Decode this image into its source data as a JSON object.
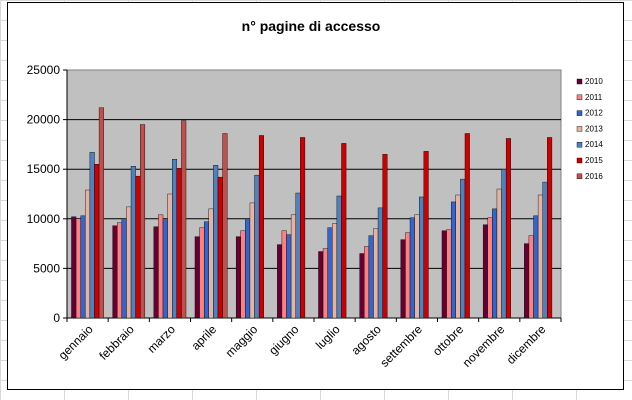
{
  "chart_data": {
    "type": "bar",
    "title": "n° pagine di accesso",
    "xlabel": "",
    "ylabel": "",
    "ylim": [
      0,
      25000
    ],
    "yticks": [
      "0",
      "5000",
      "10000",
      "15000",
      "20000",
      "25000"
    ],
    "grid": true,
    "legend_position": "right",
    "categories": [
      "gennaio",
      "febbraio",
      "marzo",
      "aprile",
      "maggio",
      "giugno",
      "luglio",
      "agosto",
      "settembre",
      "ottobre",
      "novembre",
      "dicembre"
    ],
    "series": [
      {
        "name": "2010",
        "color": "#660033",
        "values": [
          10200,
          9300,
          9200,
          8200,
          8200,
          7400,
          6700,
          6500,
          7900,
          8800,
          9400,
          7500
        ]
      },
      {
        "name": "2011",
        "color": "#ff8080",
        "values": [
          10000,
          9600,
          10400,
          9100,
          8800,
          8800,
          7000,
          7200,
          8600,
          8900,
          10100,
          8300
        ]
      },
      {
        "name": "2012",
        "color": "#3366cc",
        "values": [
          10300,
          10000,
          10000,
          9700,
          10000,
          8400,
          9100,
          8300,
          10100,
          11700,
          11000,
          10300
        ]
      },
      {
        "name": "2013",
        "color": "#e6b3a3",
        "values": [
          12900,
          11200,
          12500,
          11000,
          11600,
          10400,
          9500,
          9000,
          10400,
          12400,
          13000,
          12400
        ]
      },
      {
        "name": "2014",
        "color": "#4f81bd",
        "values": [
          16700,
          15300,
          16000,
          15400,
          14400,
          12600,
          12300,
          11100,
          12200,
          14000,
          15000,
          13700
        ]
      },
      {
        "name": "2015",
        "color": "#cc0000",
        "values": [
          15500,
          14300,
          15100,
          14200,
          18400,
          18200,
          17600,
          16500,
          16800,
          18600,
          18100,
          18200
        ]
      },
      {
        "name": "2016",
        "color": "#c0504d",
        "values": [
          21200,
          19500,
          19900,
          18600,
          null,
          null,
          null,
          null,
          null,
          null,
          null,
          null
        ]
      }
    ]
  }
}
